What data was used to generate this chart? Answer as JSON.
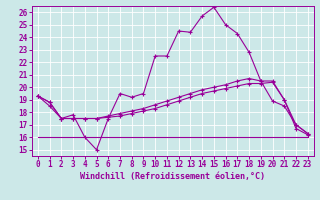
{
  "xlabel": "Windchill (Refroidissement éolien,°C)",
  "background_color": "#cce8e8",
  "line_color": "#990099",
  "xlim": [
    -0.5,
    23.5
  ],
  "ylim": [
    14.5,
    26.5
  ],
  "yticks": [
    15,
    16,
    17,
    18,
    19,
    20,
    21,
    22,
    23,
    24,
    25,
    26
  ],
  "xticks": [
    0,
    1,
    2,
    3,
    4,
    5,
    6,
    7,
    8,
    9,
    10,
    11,
    12,
    13,
    14,
    15,
    16,
    17,
    18,
    19,
    20,
    21,
    22,
    23
  ],
  "series1_x": [
    0,
    1,
    2,
    3,
    4,
    5,
    6,
    7,
    8,
    9,
    10,
    11,
    12,
    13,
    14,
    15,
    16,
    17,
    18,
    19,
    20,
    21,
    22,
    23
  ],
  "series1_y": [
    19.3,
    18.5,
    17.5,
    17.8,
    16.0,
    15.0,
    17.5,
    19.5,
    19.2,
    19.5,
    22.5,
    22.5,
    24.5,
    24.4,
    25.7,
    26.4,
    25.0,
    24.3,
    22.8,
    20.5,
    20.5,
    19.0,
    17.0,
    16.3
  ],
  "series2_x": [
    0,
    1,
    2,
    3,
    4,
    5,
    6,
    7,
    8,
    9,
    10,
    11,
    12,
    13,
    14,
    15,
    16,
    17,
    18,
    19,
    20,
    21,
    22,
    23
  ],
  "series2_y": [
    19.3,
    18.8,
    17.5,
    17.5,
    17.5,
    17.5,
    17.6,
    17.7,
    17.9,
    18.1,
    18.3,
    18.6,
    18.9,
    19.2,
    19.5,
    19.7,
    19.9,
    20.1,
    20.3,
    20.3,
    20.4,
    19.0,
    16.7,
    16.2
  ],
  "series3_x": [
    0,
    23
  ],
  "series3_y": [
    16.0,
    16.0
  ],
  "series4_x": [
    0,
    1,
    2,
    3,
    4,
    5,
    6,
    7,
    8,
    9,
    10,
    11,
    12,
    13,
    14,
    15,
    16,
    17,
    18,
    19,
    20,
    21,
    22,
    23
  ],
  "series4_y": [
    19.3,
    18.8,
    17.5,
    17.5,
    17.5,
    17.5,
    17.7,
    17.9,
    18.1,
    18.3,
    18.6,
    18.9,
    19.2,
    19.5,
    19.8,
    20.0,
    20.2,
    20.5,
    20.7,
    20.5,
    18.9,
    18.5,
    17.0,
    16.3
  ],
  "tick_fontsize": 5.5,
  "xlabel_fontsize": 6.0
}
